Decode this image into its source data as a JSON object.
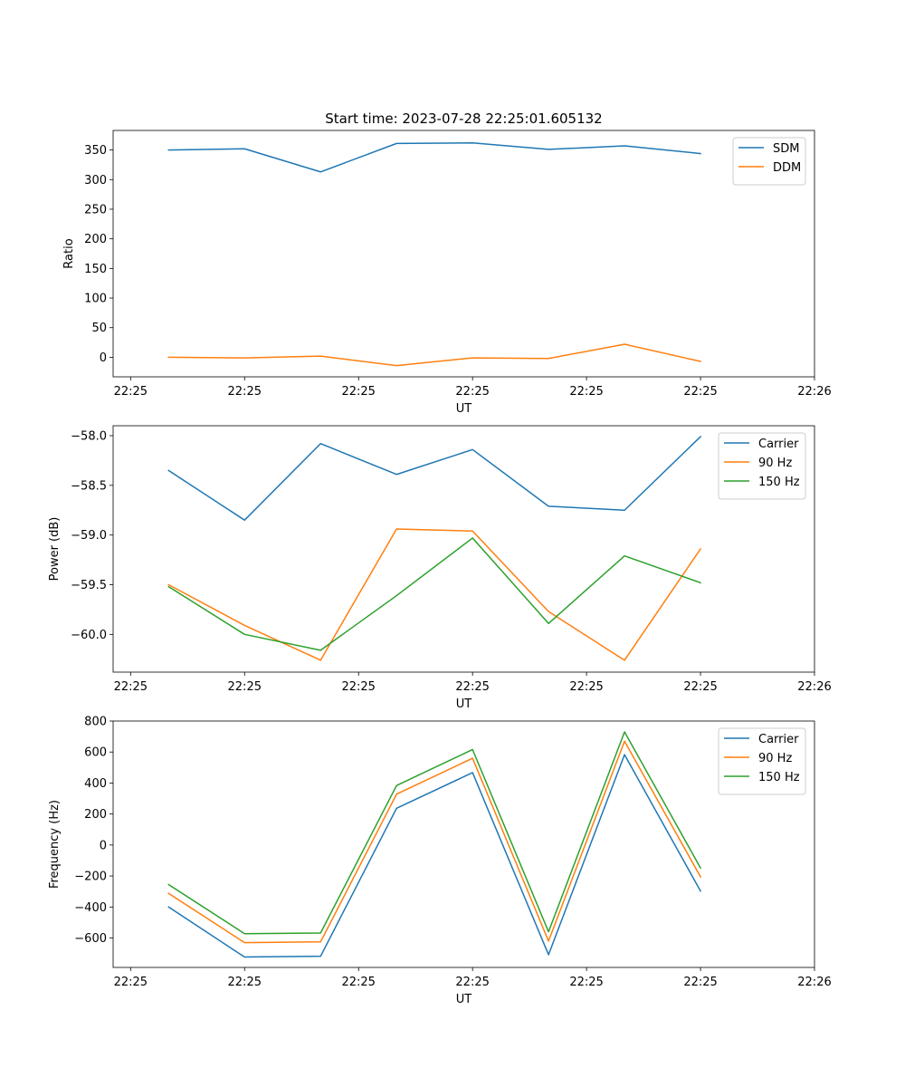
{
  "figure": {
    "title": "Start time: 2023-07-28 22:25:01.605132"
  },
  "chart_data": [
    {
      "type": "line",
      "title": "Start time: 2023-07-28 22:25:01.605132",
      "xlabel": "UT",
      "ylabel": "Ratio",
      "x_index": [
        0,
        1,
        2,
        3,
        4,
        5,
        6,
        7
      ],
      "xlim": [
        -0.73,
        8.5
      ],
      "xticks": [
        -0.5,
        1.0,
        2.5,
        4.0,
        5.5,
        7.0,
        8.5
      ],
      "xtick_labels": [
        "22:25",
        "22:25",
        "22:25",
        "22:25",
        "22:25",
        "22:25",
        "22:26"
      ],
      "ylim": [
        -33,
        383
      ],
      "yticks": [
        0,
        50,
        100,
        150,
        200,
        250,
        300,
        350
      ],
      "ytick_labels": [
        "0",
        "50",
        "100",
        "150",
        "200",
        "250",
        "300",
        "350"
      ],
      "legend_position": "top-right",
      "series": [
        {
          "name": "SDM",
          "color": "#1f77b4",
          "values": [
            350,
            352,
            313,
            361,
            362,
            351,
            357,
            344
          ]
        },
        {
          "name": "DDM",
          "color": "#ff7f0e",
          "values": [
            0,
            -1,
            2,
            -14,
            -1,
            -2,
            22,
            -7
          ]
        }
      ]
    },
    {
      "type": "line",
      "title": "",
      "xlabel": "UT",
      "ylabel": "Power (dB)",
      "x_index": [
        0,
        1,
        2,
        3,
        4,
        5,
        6,
        7
      ],
      "xlim": [
        -0.73,
        8.5
      ],
      "xticks": [
        -0.5,
        1.0,
        2.5,
        4.0,
        5.5,
        7.0,
        8.5
      ],
      "xtick_labels": [
        "22:25",
        "22:25",
        "22:25",
        "22:25",
        "22:25",
        "22:25",
        "22:26"
      ],
      "ylim": [
        -60.38,
        -57.9
      ],
      "yticks": [
        -60.0,
        -59.5,
        -59.0,
        -58.5,
        -58.0
      ],
      "ytick_labels": [
        "−60.0",
        "−59.5",
        "−59.0",
        "−58.5",
        "−58.0"
      ],
      "legend_position": "top-right",
      "series": [
        {
          "name": "Carrier",
          "color": "#1f77b4",
          "values": [
            -58.35,
            -58.85,
            -58.08,
            -58.39,
            -58.14,
            -58.71,
            -58.75,
            -58.01
          ]
        },
        {
          "name": "90 Hz",
          "color": "#ff7f0e",
          "values": [
            -59.5,
            -59.91,
            -60.26,
            -58.94,
            -58.96,
            -59.77,
            -60.26,
            -59.14
          ]
        },
        {
          "name": "150 Hz",
          "color": "#2ca02c",
          "values": [
            -59.52,
            -60.0,
            -60.16,
            -59.61,
            -59.03,
            -59.89,
            -59.21,
            -59.48
          ]
        }
      ]
    },
    {
      "type": "line",
      "title": "",
      "xlabel": "UT",
      "ylabel": "Frequency (Hz)",
      "x_index": [
        0,
        1,
        2,
        3,
        4,
        5,
        6,
        7
      ],
      "xlim": [
        -0.73,
        8.5
      ],
      "xticks": [
        -0.5,
        1.0,
        2.5,
        4.0,
        5.5,
        7.0,
        8.5
      ],
      "xtick_labels": [
        "22:25",
        "22:25",
        "22:25",
        "22:25",
        "22:25",
        "22:25",
        "22:26"
      ],
      "ylim": [
        -790,
        800
      ],
      "yticks": [
        -600,
        -400,
        -200,
        0,
        200,
        400,
        600,
        800
      ],
      "ytick_labels": [
        "−600",
        "−400",
        "−200",
        "0",
        "200",
        "400",
        "600",
        "800"
      ],
      "legend_position": "top-right",
      "series": [
        {
          "name": "Carrier",
          "color": "#1f77b4",
          "values": [
            -400,
            -723,
            -718,
            237,
            467,
            -708,
            583,
            -297
          ]
        },
        {
          "name": "90 Hz",
          "color": "#ff7f0e",
          "values": [
            -312,
            -630,
            -625,
            328,
            560,
            -620,
            670,
            -205
          ]
        },
        {
          "name": "150 Hz",
          "color": "#2ca02c",
          "values": [
            -255,
            -572,
            -568,
            384,
            616,
            -560,
            730,
            -148
          ]
        }
      ]
    }
  ]
}
